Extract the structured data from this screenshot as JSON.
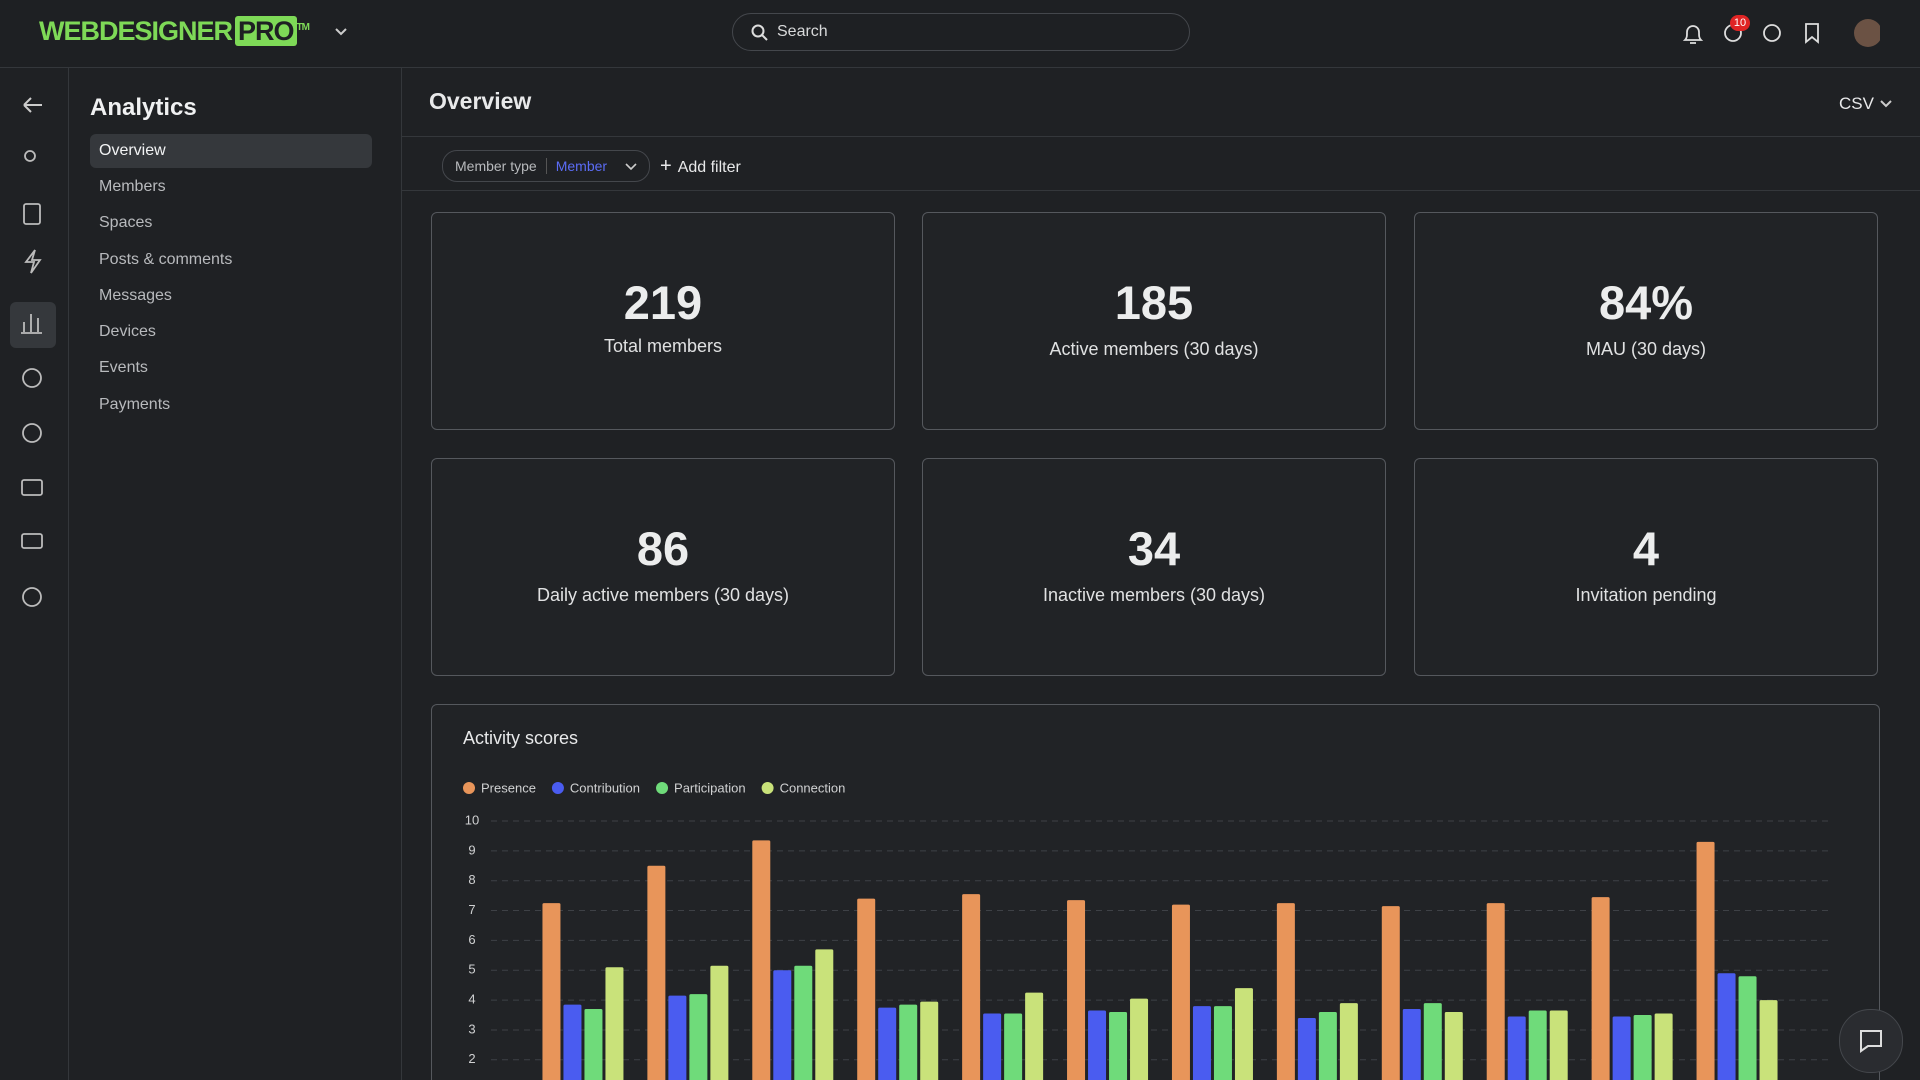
{
  "header": {
    "logo": "WEBDESIGNER",
    "logo_box": "PRO",
    "logo_tm": "TM",
    "search_placeholder": "Search",
    "notification_badge": "10"
  },
  "sidebar": {
    "title": "Analytics",
    "items": [
      "Overview",
      "Members",
      "Spaces",
      "Posts & comments",
      "Messages",
      "Devices",
      "Events",
      "Payments"
    ]
  },
  "main": {
    "title": "Overview",
    "export": "CSV",
    "filter": {
      "label": "Member type",
      "value": "Member"
    },
    "add_filter": "Add filter",
    "stats": [
      {
        "value": "219",
        "label": "Total members"
      },
      {
        "value": "185",
        "label": "Active members (30 days)"
      },
      {
        "value": "84%",
        "label": "MAU (30 days)"
      },
      {
        "value": "86",
        "label": "Daily active members (30 days)"
      },
      {
        "value": "34",
        "label": "Inactive members (30 days)"
      },
      {
        "value": "4",
        "label": "Invitation pending"
      }
    ]
  },
  "chart_data": {
    "type": "bar",
    "title": "Activity scores",
    "categories": [
      null,
      null,
      null,
      null,
      null,
      null,
      null,
      null,
      null,
      null,
      null,
      null
    ],
    "series": [
      {
        "name": "Presence",
        "color": "#e8955a",
        "values": [
          7.25,
          8.5,
          9.35,
          7.4,
          7.55,
          7.35,
          7.2,
          7.25,
          7.15,
          7.25,
          7.45,
          9.3
        ]
      },
      {
        "name": "Contribution",
        "color": "#4a5cf0",
        "values": [
          3.85,
          4.15,
          5.0,
          3.75,
          3.55,
          3.65,
          3.8,
          3.4,
          3.7,
          3.45,
          3.45,
          4.9
        ]
      },
      {
        "name": "Participation",
        "color": "#6fdb7a",
        "values": [
          3.7,
          4.2,
          5.15,
          3.85,
          3.55,
          3.6,
          3.8,
          3.6,
          3.9,
          3.65,
          3.5,
          4.8
        ]
      },
      {
        "name": "Connection",
        "color": "#c9e27a",
        "values": [
          5.1,
          5.15,
          5.7,
          3.95,
          4.25,
          4.05,
          4.4,
          3.9,
          3.6,
          3.65,
          3.55,
          4.0
        ]
      }
    ],
    "ylim": [
      0,
      10
    ],
    "yticks": [
      2,
      3,
      4,
      5,
      6,
      7,
      8,
      9,
      10
    ],
    "grid": true,
    "legend": "top-left"
  }
}
